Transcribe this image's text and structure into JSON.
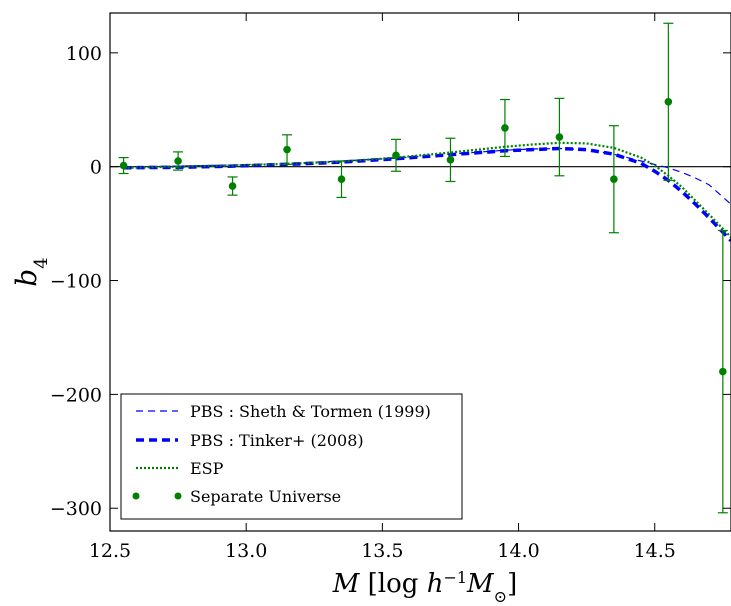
{
  "chart_data": {
    "type": "line",
    "title": "",
    "xlabel": "M [log h^-1 M_⊙]",
    "ylabel": "b_4",
    "xlim": [
      12.5,
      14.78
    ],
    "ylim": [
      -320,
      135
    ],
    "x_ticks": [
      "12.5",
      "13.0",
      "13.5",
      "14.0",
      "14.5"
    ],
    "y_ticks": [
      "100",
      "0",
      "−100",
      "−200",
      "−300"
    ],
    "x_tick_values": [
      12.5,
      13.0,
      13.5,
      14.0,
      14.5
    ],
    "y_tick_values": [
      100,
      0,
      -100,
      -200,
      -300
    ],
    "grid": false,
    "legend_position": "lower-left",
    "zero_line": true,
    "series": [
      {
        "name": "PBS : Sheth & Tormen (1999)",
        "style": "dashed-thin",
        "color": "#0000ff",
        "x": [
          12.55,
          12.75,
          12.95,
          13.15,
          13.35,
          13.55,
          13.75,
          13.95,
          14.05,
          14.15,
          14.25,
          14.35,
          14.45,
          14.5,
          14.55,
          14.6,
          14.65,
          14.7,
          14.78
        ],
        "y": [
          0,
          0.5,
          1.5,
          3,
          5,
          7.5,
          11,
          14.5,
          15.5,
          16,
          15,
          11,
          5,
          2,
          -1,
          -5,
          -10,
          -16,
          -33
        ]
      },
      {
        "name": "PBS : Tinker+ (2008)",
        "style": "dashed-thick",
        "color": "#0000ff",
        "x": [
          12.55,
          12.75,
          12.95,
          13.15,
          13.35,
          13.55,
          13.75,
          13.95,
          14.05,
          14.15,
          14.25,
          14.35,
          14.45,
          14.5,
          14.55,
          14.6,
          14.65,
          14.7,
          14.78
        ],
        "y": [
          -1,
          -0.5,
          0.5,
          2,
          4,
          7,
          10.5,
          14,
          15,
          16,
          15,
          11,
          3,
          -4,
          -12,
          -22,
          -33,
          -45,
          -65
        ]
      },
      {
        "name": "ESP",
        "style": "dotted",
        "color": "#008000",
        "x": [
          12.55,
          12.75,
          12.95,
          13.15,
          13.35,
          13.55,
          13.75,
          13.95,
          14.05,
          14.15,
          14.25,
          14.35,
          14.45,
          14.5,
          14.55,
          14.6,
          14.65,
          14.7,
          14.78
        ],
        "y": [
          -1,
          0,
          1,
          2.5,
          4.5,
          8,
          12.5,
          17.5,
          19.5,
          21,
          20.5,
          16.5,
          8,
          1,
          -8,
          -18,
          -30,
          -42,
          -62
        ]
      },
      {
        "name": "Separate Universe",
        "style": "points-errorbars",
        "color": "#008000",
        "x": [
          12.55,
          12.75,
          12.95,
          13.15,
          13.35,
          13.55,
          13.75,
          13.95,
          14.15,
          14.35,
          14.55,
          14.75
        ],
        "y": [
          1,
          5,
          -17,
          15,
          -11,
          10,
          6,
          34,
          26,
          -11,
          57,
          -180
        ],
        "yerr": [
          7,
          8,
          8,
          13,
          16,
          14,
          19,
          25,
          34,
          47,
          69,
          124
        ]
      }
    ]
  }
}
